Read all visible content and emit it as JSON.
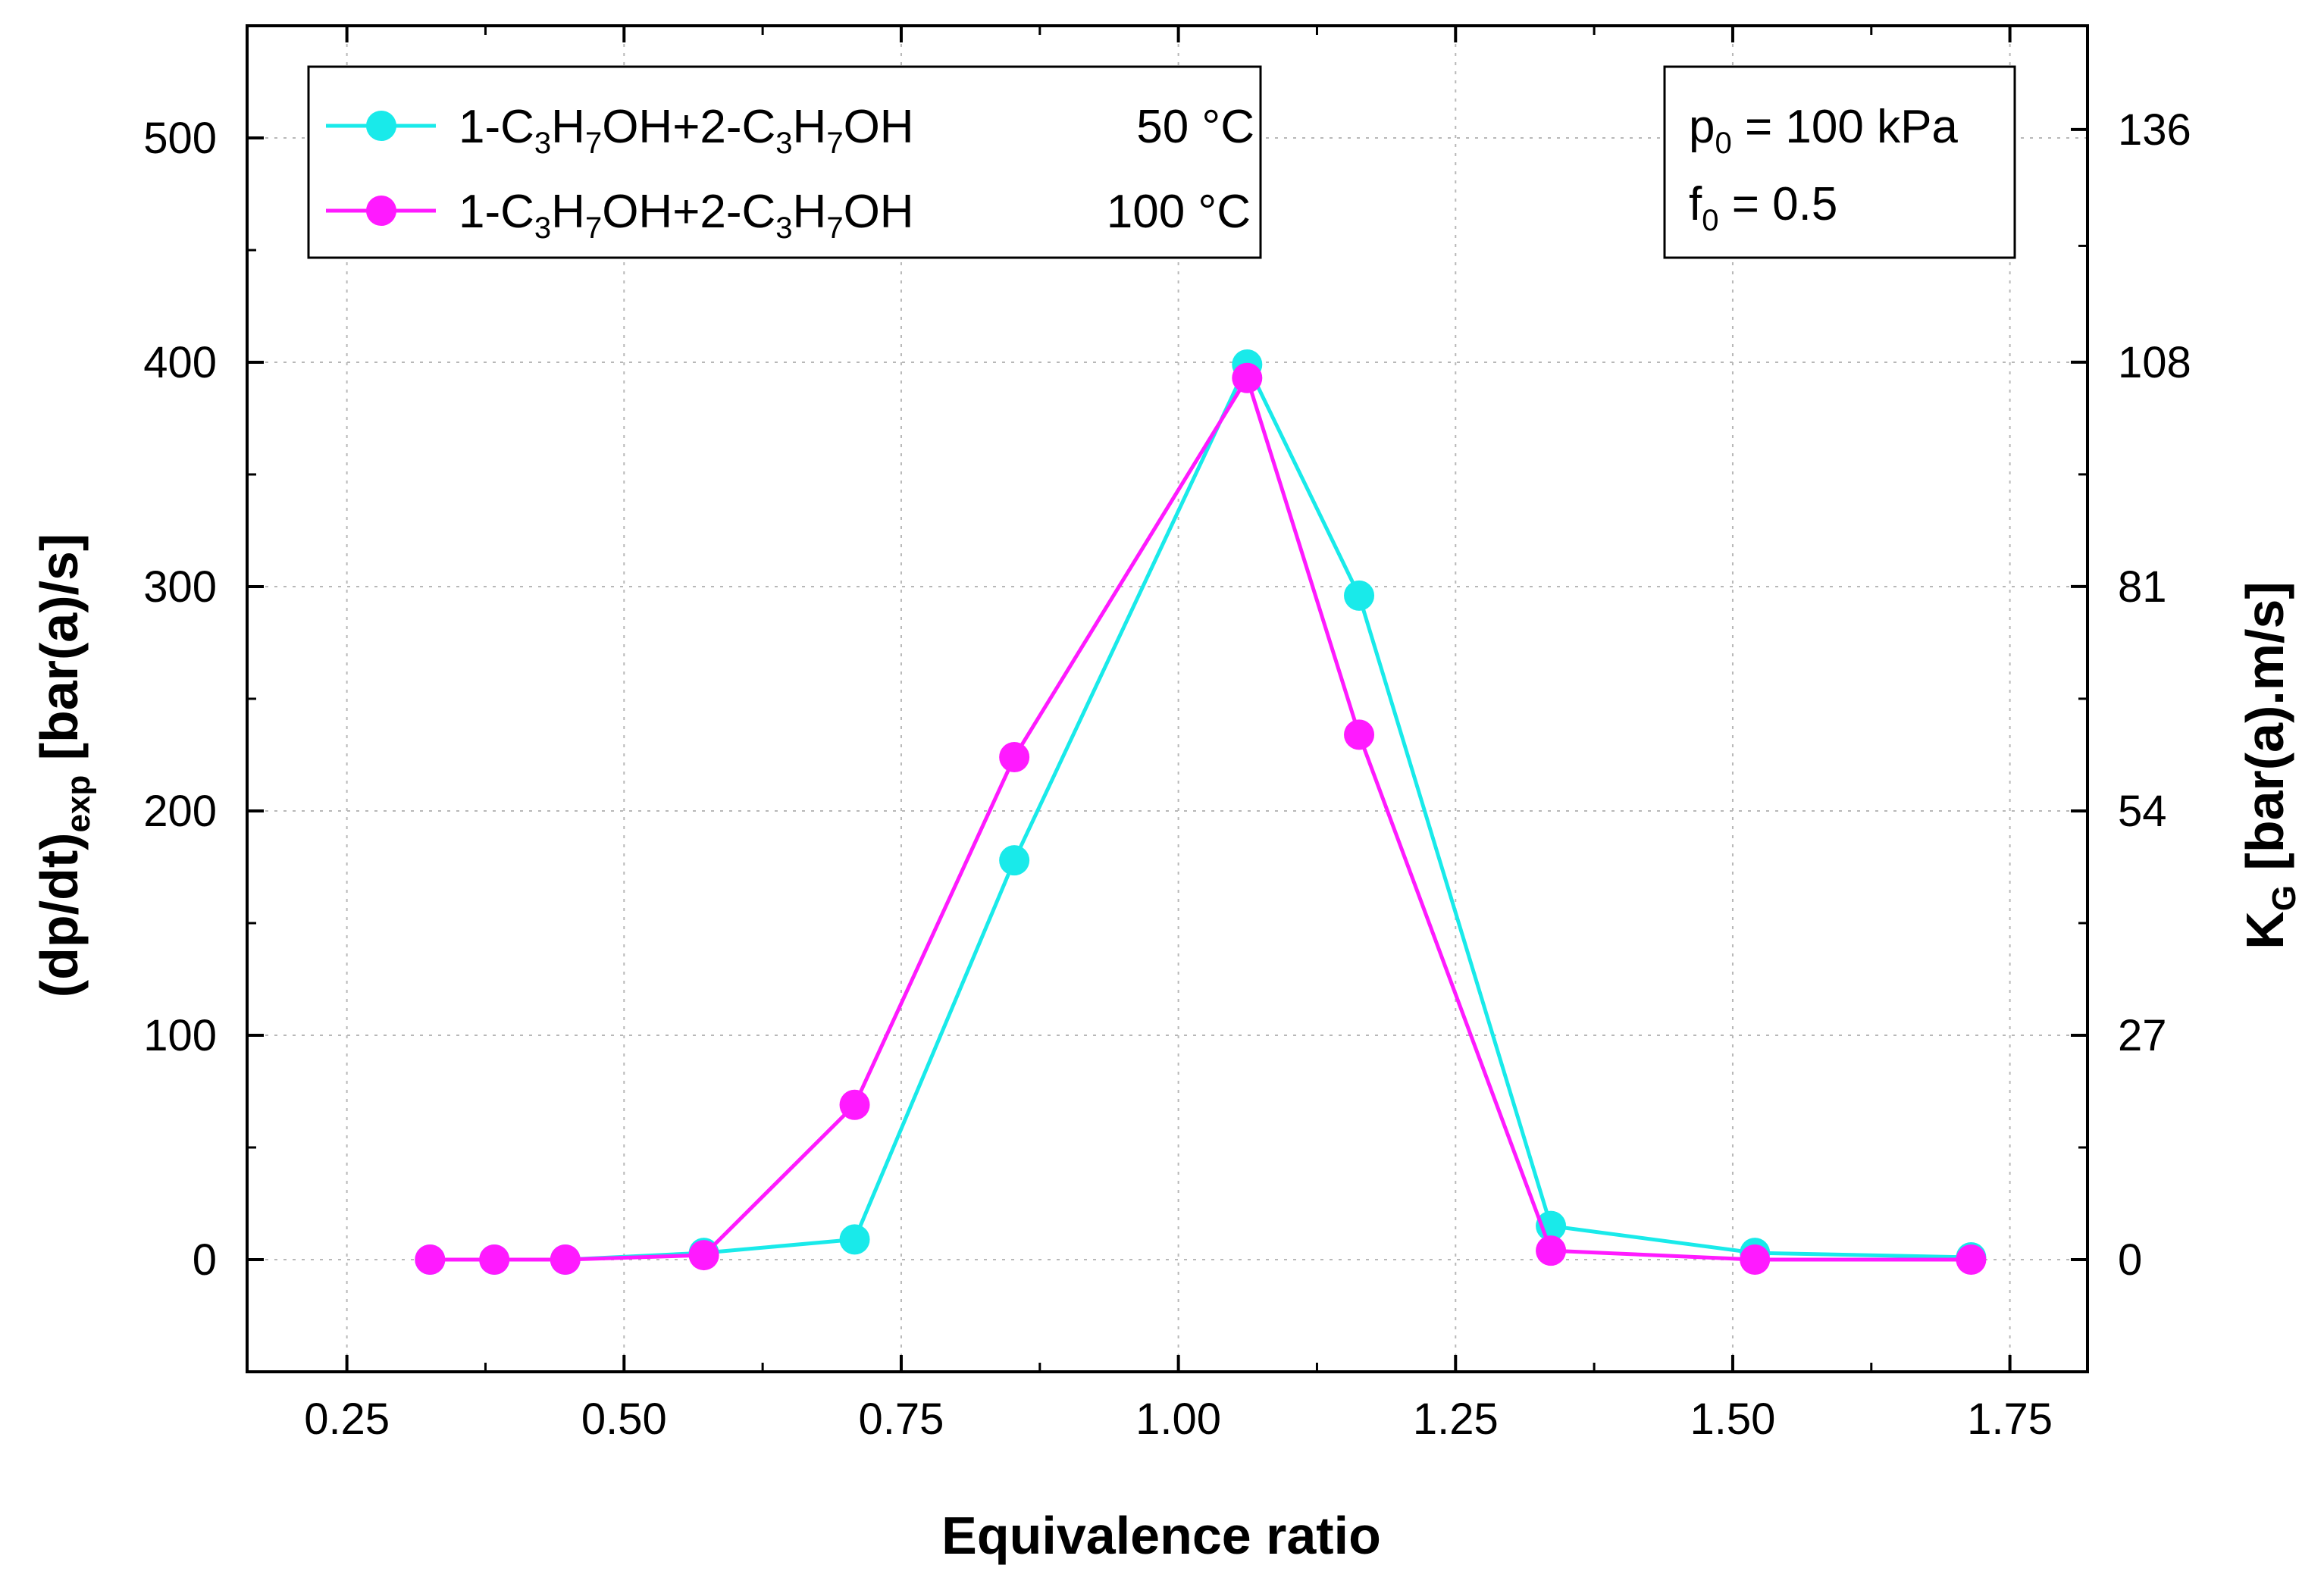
{
  "chart_data": {
    "type": "line",
    "xlabel": "Equivalence ratio",
    "ylabel": {
      "base": "(dp/dt)",
      "sub": "exp",
      "unit": " [bar(a)/s]"
    },
    "y2label": {
      "base": "K",
      "sub": "G",
      "unit": " [bar(a).m/s]"
    },
    "xlim": [
      0.16,
      1.82
    ],
    "ylim": [
      -50,
      550
    ],
    "x_ticks": [
      0.25,
      0.5,
      0.75,
      1.0,
      1.25,
      1.5,
      1.75
    ],
    "x_tick_labels": [
      "0.25",
      "0.50",
      "0.75",
      "1.00",
      "1.25",
      "1.50",
      "1.75"
    ],
    "y_ticks": [
      0,
      100,
      200,
      300,
      400,
      500
    ],
    "y_tick_labels": [
      "0",
      "100",
      "200",
      "300",
      "400",
      "500"
    ],
    "y2_ticks": [
      0,
      27,
      54,
      81,
      108,
      136
    ],
    "y2_tick_labels": [
      "0",
      "27",
      "54",
      "81",
      "108",
      "136"
    ],
    "y2_to_y_factor": 3.704,
    "grid": true,
    "legend_position": "top-left",
    "series": [
      {
        "name_parts": [
          "1-C",
          "3",
          "H",
          "7",
          "OH+2-C",
          "3",
          "H",
          "7",
          "OH"
        ],
        "temperature": "50 °C",
        "color": "#19eaea",
        "x": [
          0.325,
          0.383,
          0.447,
          0.572,
          0.708,
          0.852,
          1.062,
          1.163,
          1.336,
          1.52,
          1.715
        ],
        "y": [
          0,
          0,
          0,
          3,
          9,
          178,
          399,
          296,
          15,
          3,
          1
        ]
      },
      {
        "name_parts": [
          "1-C",
          "3",
          "H",
          "7",
          "OH+2-C",
          "3",
          "H",
          "7",
          "OH"
        ],
        "temperature": "100 °C",
        "color": "#ff1aff",
        "x": [
          0.325,
          0.383,
          0.447,
          0.572,
          0.708,
          0.852,
          1.062,
          1.163,
          1.336,
          1.52,
          1.715
        ],
        "y": [
          0,
          0,
          0,
          2,
          69,
          224,
          393,
          234,
          4,
          0,
          0
        ]
      }
    ],
    "annotation": {
      "line1": {
        "base": "p",
        "sub": "0",
        "rest": " = 100 kPa"
      },
      "line2": {
        "base": "f",
        "sub": "0",
        "rest": " = 0.5"
      }
    }
  }
}
